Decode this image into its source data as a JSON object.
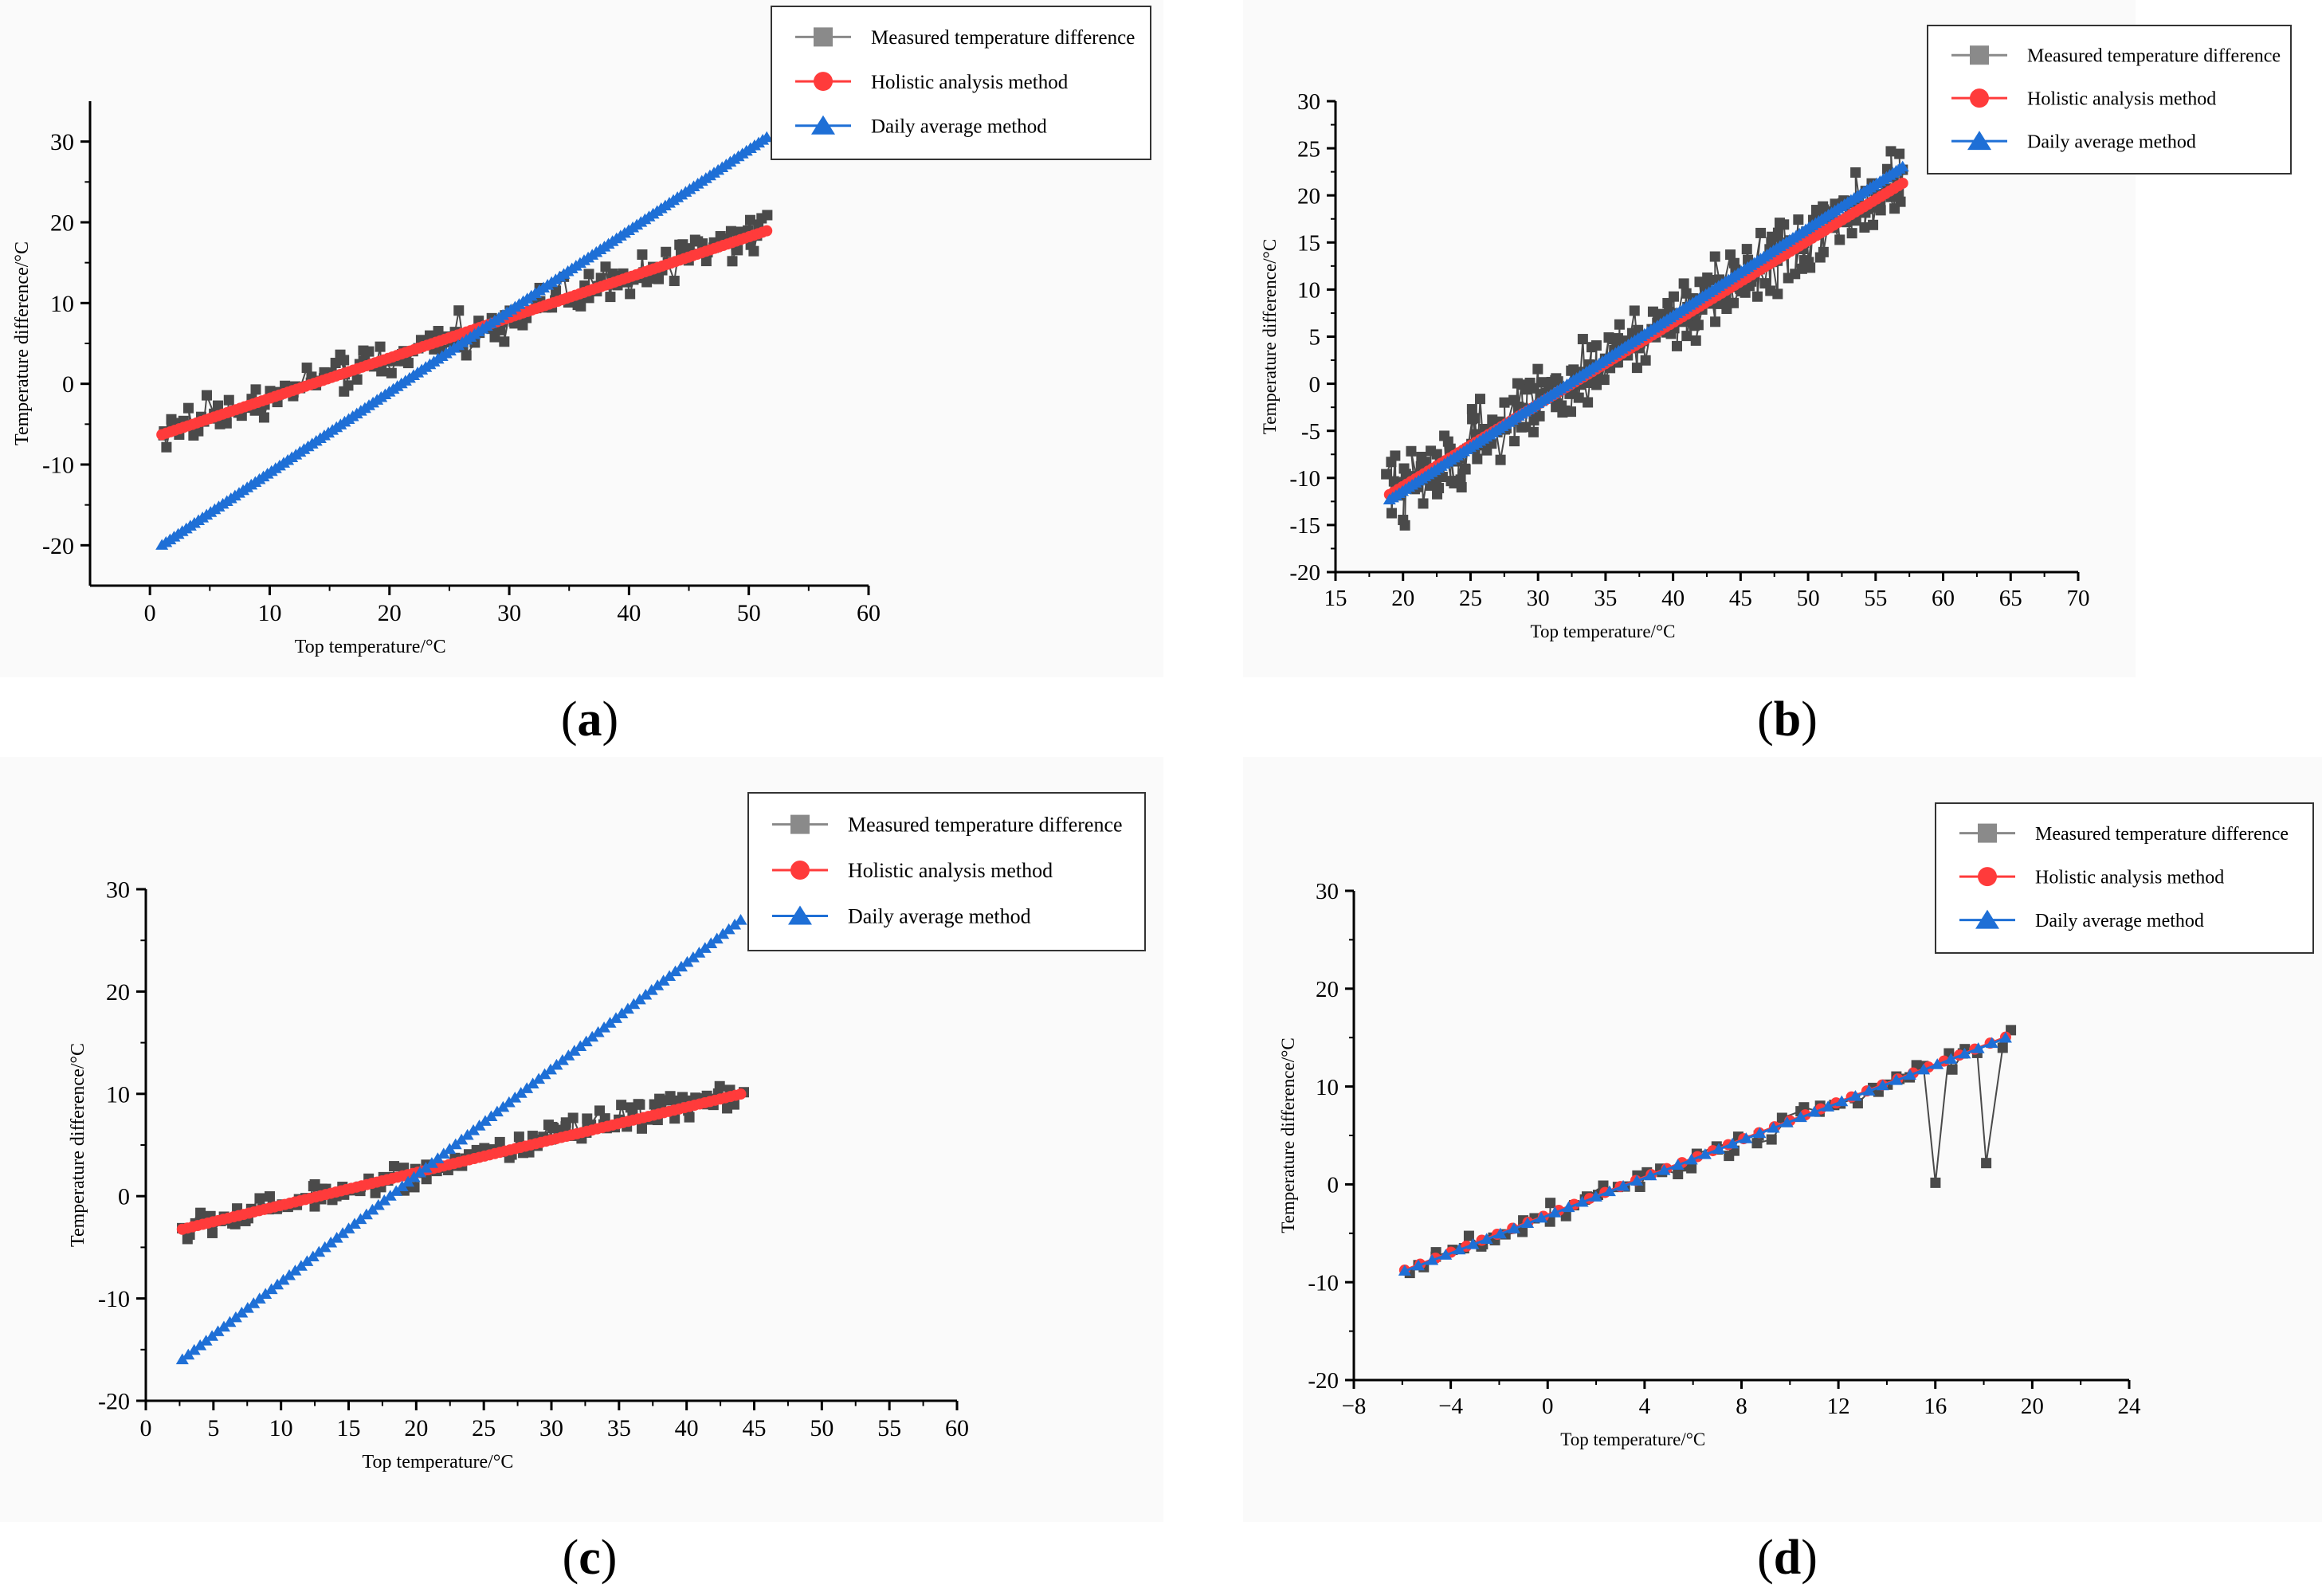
{
  "colors": {
    "measured": "#4a4a4a",
    "holistic": "#ff3b3b",
    "daily": "#1e6fd6",
    "axis": "#000000"
  },
  "legend": {
    "measured": "Measured temperature difference",
    "holistic": "Holistic analysis method",
    "daily": "Daily average method"
  },
  "captions": {
    "a": "a",
    "b": "b",
    "c": "c",
    "d": "d"
  },
  "chart_data": [
    {
      "id": "a",
      "type": "line",
      "label": "(a)",
      "xlabel": "Top temperature/°C",
      "ylabel": "Temperature difference/°C",
      "xlim": [
        -5,
        60
      ],
      "ylim": [
        -25,
        35
      ],
      "xticks": [
        "0",
        "10",
        "20",
        "30",
        "40",
        "50",
        "60"
      ],
      "yticks": [
        "-20",
        "-10",
        "0",
        "10",
        "20",
        "30"
      ],
      "measured": {
        "slope": 0.5,
        "intercept": -6.8,
        "x_range": [
          1,
          51.5
        ],
        "noise": 2.2,
        "n": 190
      },
      "holistic": {
        "slope": 0.5,
        "intercept": -6.8,
        "x_range": [
          1,
          51.5
        ],
        "n": 140
      },
      "daily": {
        "slope": 1.0,
        "intercept": -21,
        "x_range": [
          1,
          51.5
        ],
        "n": 150
      }
    },
    {
      "id": "b",
      "type": "line",
      "label": "(b)",
      "xlabel": "Top temperature/°C",
      "ylabel": "Temperature difference/°C",
      "xlim": [
        15,
        70
      ],
      "ylim": [
        -20,
        30
      ],
      "xticks": [
        "15",
        "20",
        "25",
        "30",
        "35",
        "40",
        "45",
        "50",
        "55",
        "60",
        "65",
        "70"
      ],
      "yticks": [
        "-20",
        "-15",
        "-10",
        "-5",
        "0",
        "5",
        "10",
        "15",
        "20",
        "25",
        "30"
      ],
      "measured": {
        "slope": 0.88,
        "intercept": -28.5,
        "x_range": [
          19,
          57
        ],
        "noise": 3.2,
        "n": 320
      },
      "holistic": {
        "slope": 0.87,
        "intercept": -28.3,
        "x_range": [
          19,
          57
        ],
        "n": 120
      },
      "daily": {
        "slope": 0.93,
        "intercept": -30,
        "x_range": [
          19,
          57
        ],
        "n": 160
      }
    },
    {
      "id": "c",
      "type": "line",
      "label": "(c)",
      "xlabel": "Top temperature/°C",
      "ylabel": "Temperature difference/°C",
      "xlim": [
        0,
        60
      ],
      "ylim": [
        -20,
        30
      ],
      "xticks": [
        "0",
        "5",
        "10",
        "15",
        "20",
        "25",
        "30",
        "35",
        "40",
        "45",
        "50",
        "55",
        "60"
      ],
      "yticks": [
        "-20",
        "-10",
        "0",
        "10",
        "20",
        "30"
      ],
      "measured": {
        "slope": 0.33,
        "intercept": -4.2,
        "x_range": [
          2.7,
          44
        ],
        "noise": 1.2,
        "n": 150
      },
      "holistic": {
        "slope": 0.32,
        "intercept": -4.1,
        "x_range": [
          2.7,
          44
        ],
        "n": 110
      },
      "daily": {
        "slope": 1.04,
        "intercept": -18.8,
        "x_range": [
          2.7,
          44
        ],
        "n": 95
      }
    },
    {
      "id": "d",
      "type": "line",
      "label": "(d)",
      "xlabel": "Top temperature/°C",
      "ylabel": "Temperature difference/°C",
      "xlim": [
        -8,
        24
      ],
      "ylim": [
        -20,
        30
      ],
      "xticks": [
        "−8",
        "−4",
        "0",
        "4",
        "8",
        "12",
        "16",
        "20",
        "24"
      ],
      "yticks": [
        "-20",
        "-10",
        "0",
        "10",
        "20",
        "30"
      ],
      "measured": {
        "slope": 0.96,
        "intercept": -3.2,
        "x_range": [
          -5.9,
          18.9
        ],
        "noise": 0.9,
        "n": 70
      },
      "holistic": {
        "slope": 0.96,
        "intercept": -3.1,
        "x_range": [
          -5.9,
          18.9
        ],
        "n": 40
      },
      "daily": {
        "slope": 0.96,
        "intercept": -3.2,
        "x_range": [
          -5.9,
          18.9
        ],
        "n": 45
      }
    }
  ]
}
